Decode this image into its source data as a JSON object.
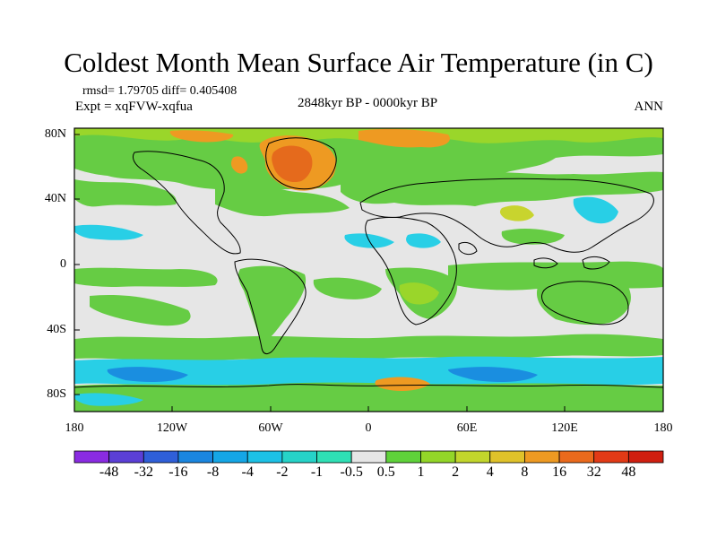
{
  "title": "Coldest Month Mean Surface Air Temperature (in C)",
  "stats": "rmsd= 1.79705 diff= 0.405408",
  "experiment": "Expt = xqFVW-xqfua",
  "period": "2848kyr BP - 0000kyr BP",
  "season": "ANN",
  "axes": {
    "lat_labels": [
      "80N",
      "40N",
      "0",
      "40S",
      "80S"
    ],
    "lon_labels": [
      "180",
      "120W",
      "60W",
      "0",
      "60E",
      "120E",
      "180"
    ]
  },
  "colorbar": {
    "labels": [
      "-48",
      "-32",
      "-16",
      "-8",
      "-4",
      "-2",
      "-1",
      "-0.5",
      "0.5",
      "1",
      "2",
      "4",
      "8",
      "16",
      "32",
      "48"
    ],
    "colors": [
      "#8a2be2",
      "#5b3fd6",
      "#2f5fd8",
      "#1a86e0",
      "#15a6e6",
      "#1cc1e6",
      "#26d3c8",
      "#2fe0b5",
      "#e6e6e6",
      "#5fd23a",
      "#93d628",
      "#c2d62c",
      "#e0c22a",
      "#ee9a22",
      "#ea6a1c",
      "#e23a16",
      "#d01f10"
    ]
  },
  "palette": {
    "neutral": "#e6e6e6",
    "green": "#66cc44",
    "lightgreen": "#9ad62a",
    "yellowgreen": "#c8d42e",
    "orange": "#ee9a22",
    "darkorange": "#e56a1c",
    "cyan": "#28cfe6",
    "blue": "#1a8ee0"
  }
}
